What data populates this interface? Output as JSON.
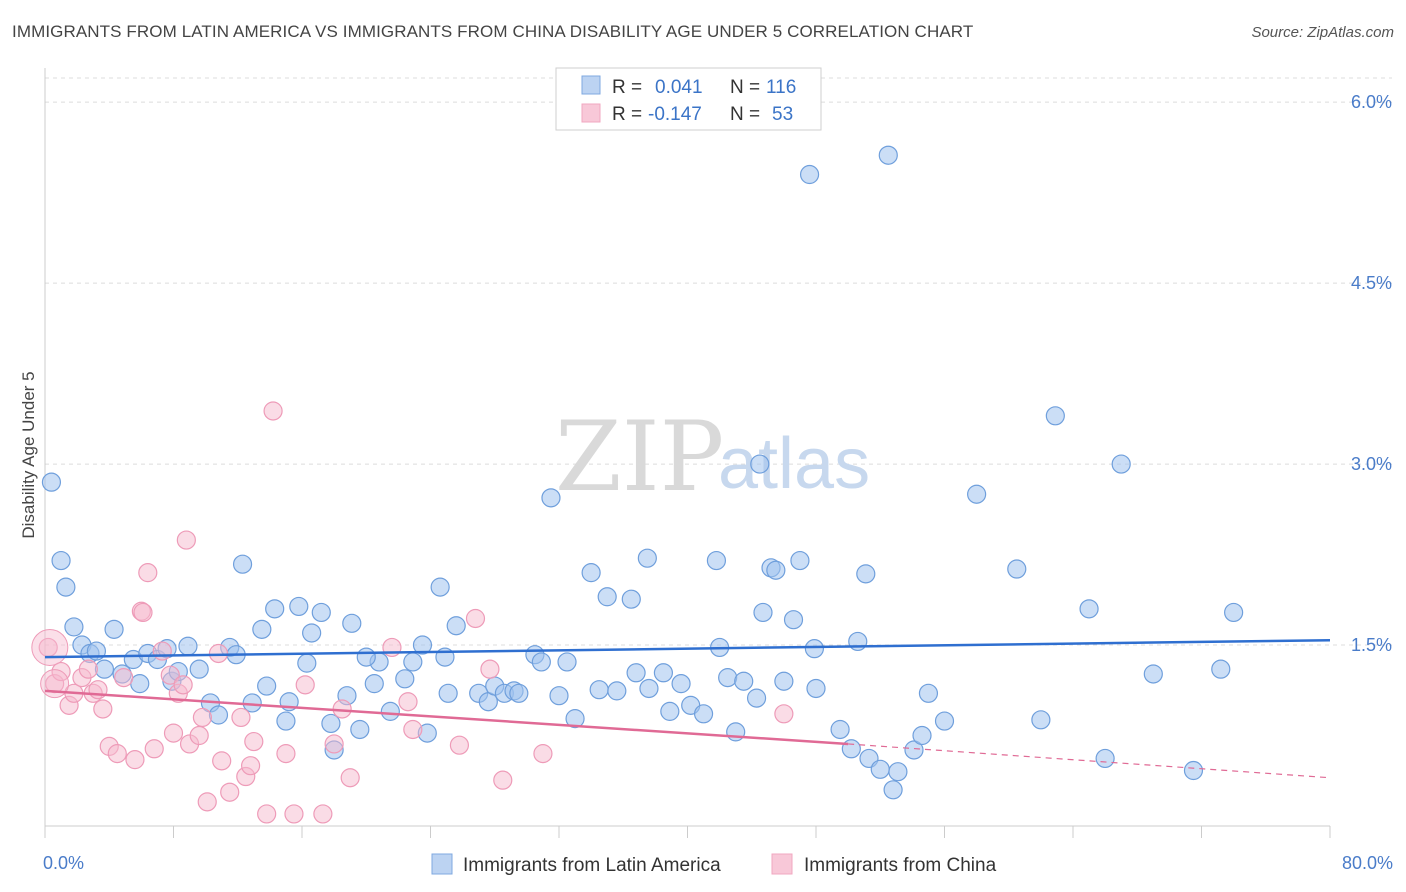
{
  "title": "IMMIGRANTS FROM LATIN AMERICA VS IMMIGRANTS FROM CHINA DISABILITY AGE UNDER 5 CORRELATION CHART",
  "source": "Source: ZipAtlas.com",
  "watermark": {
    "zip": "ZIP",
    "atlas": "atlas"
  },
  "legend": {
    "r_label": "R =",
    "n_label": "N =",
    "rows": [
      {
        "r": "0.041",
        "n": "116"
      },
      {
        "r": "-0.147",
        "n": "53"
      }
    ]
  },
  "chart_data": {
    "type": "scatter",
    "title": "IMMIGRANTS FROM LATIN AMERICA VS IMMIGRANTS FROM CHINA DISABILITY AGE UNDER 5 CORRELATION CHART",
    "xlabel": "",
    "ylabel": "Disability Age Under 5",
    "xlim": [
      0,
      80
    ],
    "ylim": [
      0,
      6.2
    ],
    "x_tick_labels": [
      "0.0%",
      "80.0%"
    ],
    "y_ticks": [
      1.5,
      3.0,
      4.5,
      6.0
    ],
    "y_tick_labels": [
      "1.5%",
      "3.0%",
      "4.5%",
      "6.0%"
    ],
    "grid": true,
    "legend_position": "top-center",
    "colors": {
      "latin": "#7fa8e0",
      "china": "#f1a7c0",
      "latin_line": "#2f6fd0",
      "china_line": "#e06a95"
    },
    "series": [
      {
        "name": "Immigrants from Latin America",
        "trend": {
          "x": [
            0,
            80
          ],
          "y": [
            1.4,
            1.54
          ]
        },
        "points": [
          [
            0.4,
            2.85
          ],
          [
            1.0,
            2.2
          ],
          [
            1.3,
            1.98
          ],
          [
            1.8,
            1.65
          ],
          [
            2.3,
            1.5
          ],
          [
            2.8,
            1.43
          ],
          [
            3.2,
            1.45
          ],
          [
            4.3,
            1.63
          ],
          [
            3.7,
            1.3
          ],
          [
            4.8,
            1.26
          ],
          [
            5.5,
            1.38
          ],
          [
            5.9,
            1.18
          ],
          [
            6.4,
            1.43
          ],
          [
            7.0,
            1.38
          ],
          [
            7.6,
            1.47
          ],
          [
            7.9,
            1.2
          ],
          [
            8.9,
            1.49
          ],
          [
            8.3,
            1.28
          ],
          [
            9.6,
            1.3
          ],
          [
            10.3,
            1.02
          ],
          [
            10.8,
            0.92
          ],
          [
            11.5,
            1.48
          ],
          [
            11.9,
            1.42
          ],
          [
            12.3,
            2.17
          ],
          [
            12.9,
            1.02
          ],
          [
            13.5,
            1.63
          ],
          [
            13.8,
            1.16
          ],
          [
            14.3,
            1.8
          ],
          [
            15.0,
            0.87
          ],
          [
            15.2,
            1.03
          ],
          [
            15.8,
            1.82
          ],
          [
            16.3,
            1.35
          ],
          [
            16.6,
            1.6
          ],
          [
            17.2,
            1.77
          ],
          [
            17.8,
            0.85
          ],
          [
            18.0,
            0.63
          ],
          [
            18.8,
            1.08
          ],
          [
            19.1,
            1.68
          ],
          [
            19.6,
            0.8
          ],
          [
            20.5,
            1.18
          ],
          [
            20.8,
            1.36
          ],
          [
            21.5,
            0.95
          ],
          [
            22.4,
            1.22
          ],
          [
            22.9,
            1.36
          ],
          [
            23.5,
            1.5
          ],
          [
            23.8,
            0.77
          ],
          [
            24.6,
            1.98
          ],
          [
            24.9,
            1.4
          ],
          [
            25.1,
            1.1
          ],
          [
            25.6,
            1.66
          ],
          [
            27.0,
            1.1
          ],
          [
            27.6,
            1.03
          ],
          [
            28.0,
            1.16
          ],
          [
            28.6,
            1.1
          ],
          [
            29.2,
            1.12
          ],
          [
            29.5,
            1.1
          ],
          [
            30.5,
            1.42
          ],
          [
            30.9,
            1.36
          ],
          [
            31.5,
            2.72
          ],
          [
            32.0,
            1.08
          ],
          [
            32.5,
            1.36
          ],
          [
            33.0,
            0.89
          ],
          [
            34.0,
            2.1
          ],
          [
            35.0,
            1.9
          ],
          [
            34.5,
            1.13
          ],
          [
            35.6,
            1.12
          ],
          [
            36.5,
            1.88
          ],
          [
            36.8,
            1.27
          ],
          [
            37.5,
            2.22
          ],
          [
            37.6,
            1.14
          ],
          [
            38.5,
            1.27
          ],
          [
            38.9,
            0.95
          ],
          [
            39.6,
            1.18
          ],
          [
            40.2,
            1.0
          ],
          [
            41.0,
            0.93
          ],
          [
            41.8,
            2.2
          ],
          [
            42.0,
            1.48
          ],
          [
            42.5,
            1.23
          ],
          [
            43.0,
            0.78
          ],
          [
            43.5,
            1.2
          ],
          [
            44.3,
            1.06
          ],
          [
            44.7,
            1.77
          ],
          [
            45.2,
            2.14
          ],
          [
            45.5,
            2.12
          ],
          [
            46.0,
            1.2
          ],
          [
            46.6,
            1.71
          ],
          [
            47.0,
            2.2
          ],
          [
            47.6,
            5.4
          ],
          [
            47.9,
            1.47
          ],
          [
            48.0,
            1.14
          ],
          [
            49.5,
            0.8
          ],
          [
            50.2,
            0.64
          ],
          [
            50.6,
            1.53
          ],
          [
            51.1,
            2.09
          ],
          [
            51.3,
            0.56
          ],
          [
            52.0,
            0.47
          ],
          [
            52.5,
            5.56
          ],
          [
            52.8,
            0.3
          ],
          [
            53.1,
            0.45
          ],
          [
            54.1,
            0.63
          ],
          [
            54.6,
            0.75
          ],
          [
            55.0,
            1.1
          ],
          [
            56.0,
            0.87
          ],
          [
            58.0,
            2.75
          ],
          [
            60.5,
            2.13
          ],
          [
            62.0,
            0.88
          ],
          [
            62.9,
            3.4
          ],
          [
            65.0,
            1.8
          ],
          [
            66.0,
            0.56
          ],
          [
            69.0,
            1.26
          ],
          [
            71.5,
            0.46
          ],
          [
            73.2,
            1.3
          ],
          [
            74.0,
            1.77
          ],
          [
            67.0,
            3.0
          ],
          [
            44.5,
            3.0
          ],
          [
            20.0,
            1.4
          ]
        ]
      },
      {
        "name": "Immigrants from China",
        "trend": {
          "x": [
            0,
            50
          ],
          "y": [
            1.12,
            0.68
          ]
        },
        "trend_dashed": {
          "x": [
            50,
            80
          ],
          "y": [
            0.68,
            0.4
          ]
        },
        "points": [
          [
            0.2,
            1.48
          ],
          [
            0.6,
            1.18
          ],
          [
            1.0,
            1.28
          ],
          [
            1.5,
            1.0
          ],
          [
            1.8,
            1.1
          ],
          [
            2.3,
            1.23
          ],
          [
            2.7,
            1.3
          ],
          [
            3.0,
            1.1
          ],
          [
            3.3,
            1.13
          ],
          [
            3.6,
            0.97
          ],
          [
            4.0,
            0.66
          ],
          [
            4.5,
            0.6
          ],
          [
            4.9,
            1.23
          ],
          [
            5.6,
            0.55
          ],
          [
            6.0,
            1.78
          ],
          [
            6.1,
            1.77
          ],
          [
            6.4,
            2.1
          ],
          [
            6.8,
            0.64
          ],
          [
            7.3,
            1.45
          ],
          [
            7.8,
            1.25
          ],
          [
            8.0,
            0.77
          ],
          [
            8.3,
            1.1
          ],
          [
            8.6,
            1.17
          ],
          [
            8.8,
            2.37
          ],
          [
            9.0,
            0.68
          ],
          [
            9.6,
            0.75
          ],
          [
            9.8,
            0.9
          ],
          [
            10.1,
            0.2
          ],
          [
            10.8,
            1.43
          ],
          [
            11.0,
            0.54
          ],
          [
            11.5,
            0.28
          ],
          [
            12.2,
            0.9
          ],
          [
            12.5,
            0.41
          ],
          [
            12.8,
            0.5
          ],
          [
            13.0,
            0.7
          ],
          [
            13.8,
            0.1
          ],
          [
            14.2,
            3.44
          ],
          [
            15.0,
            0.6
          ],
          [
            15.5,
            0.1
          ],
          [
            16.2,
            1.17
          ],
          [
            17.3,
            0.1
          ],
          [
            18.0,
            0.68
          ],
          [
            18.5,
            0.97
          ],
          [
            19.0,
            0.4
          ],
          [
            21.6,
            1.48
          ],
          [
            22.6,
            1.03
          ],
          [
            22.9,
            0.8
          ],
          [
            25.8,
            0.67
          ],
          [
            26.8,
            1.72
          ],
          [
            27.7,
            1.3
          ],
          [
            28.5,
            0.38
          ],
          [
            31.0,
            0.6
          ],
          [
            46.0,
            0.93
          ]
        ]
      }
    ]
  },
  "bottom_legend": [
    "Immigrants from Latin America",
    "Immigrants from China"
  ]
}
